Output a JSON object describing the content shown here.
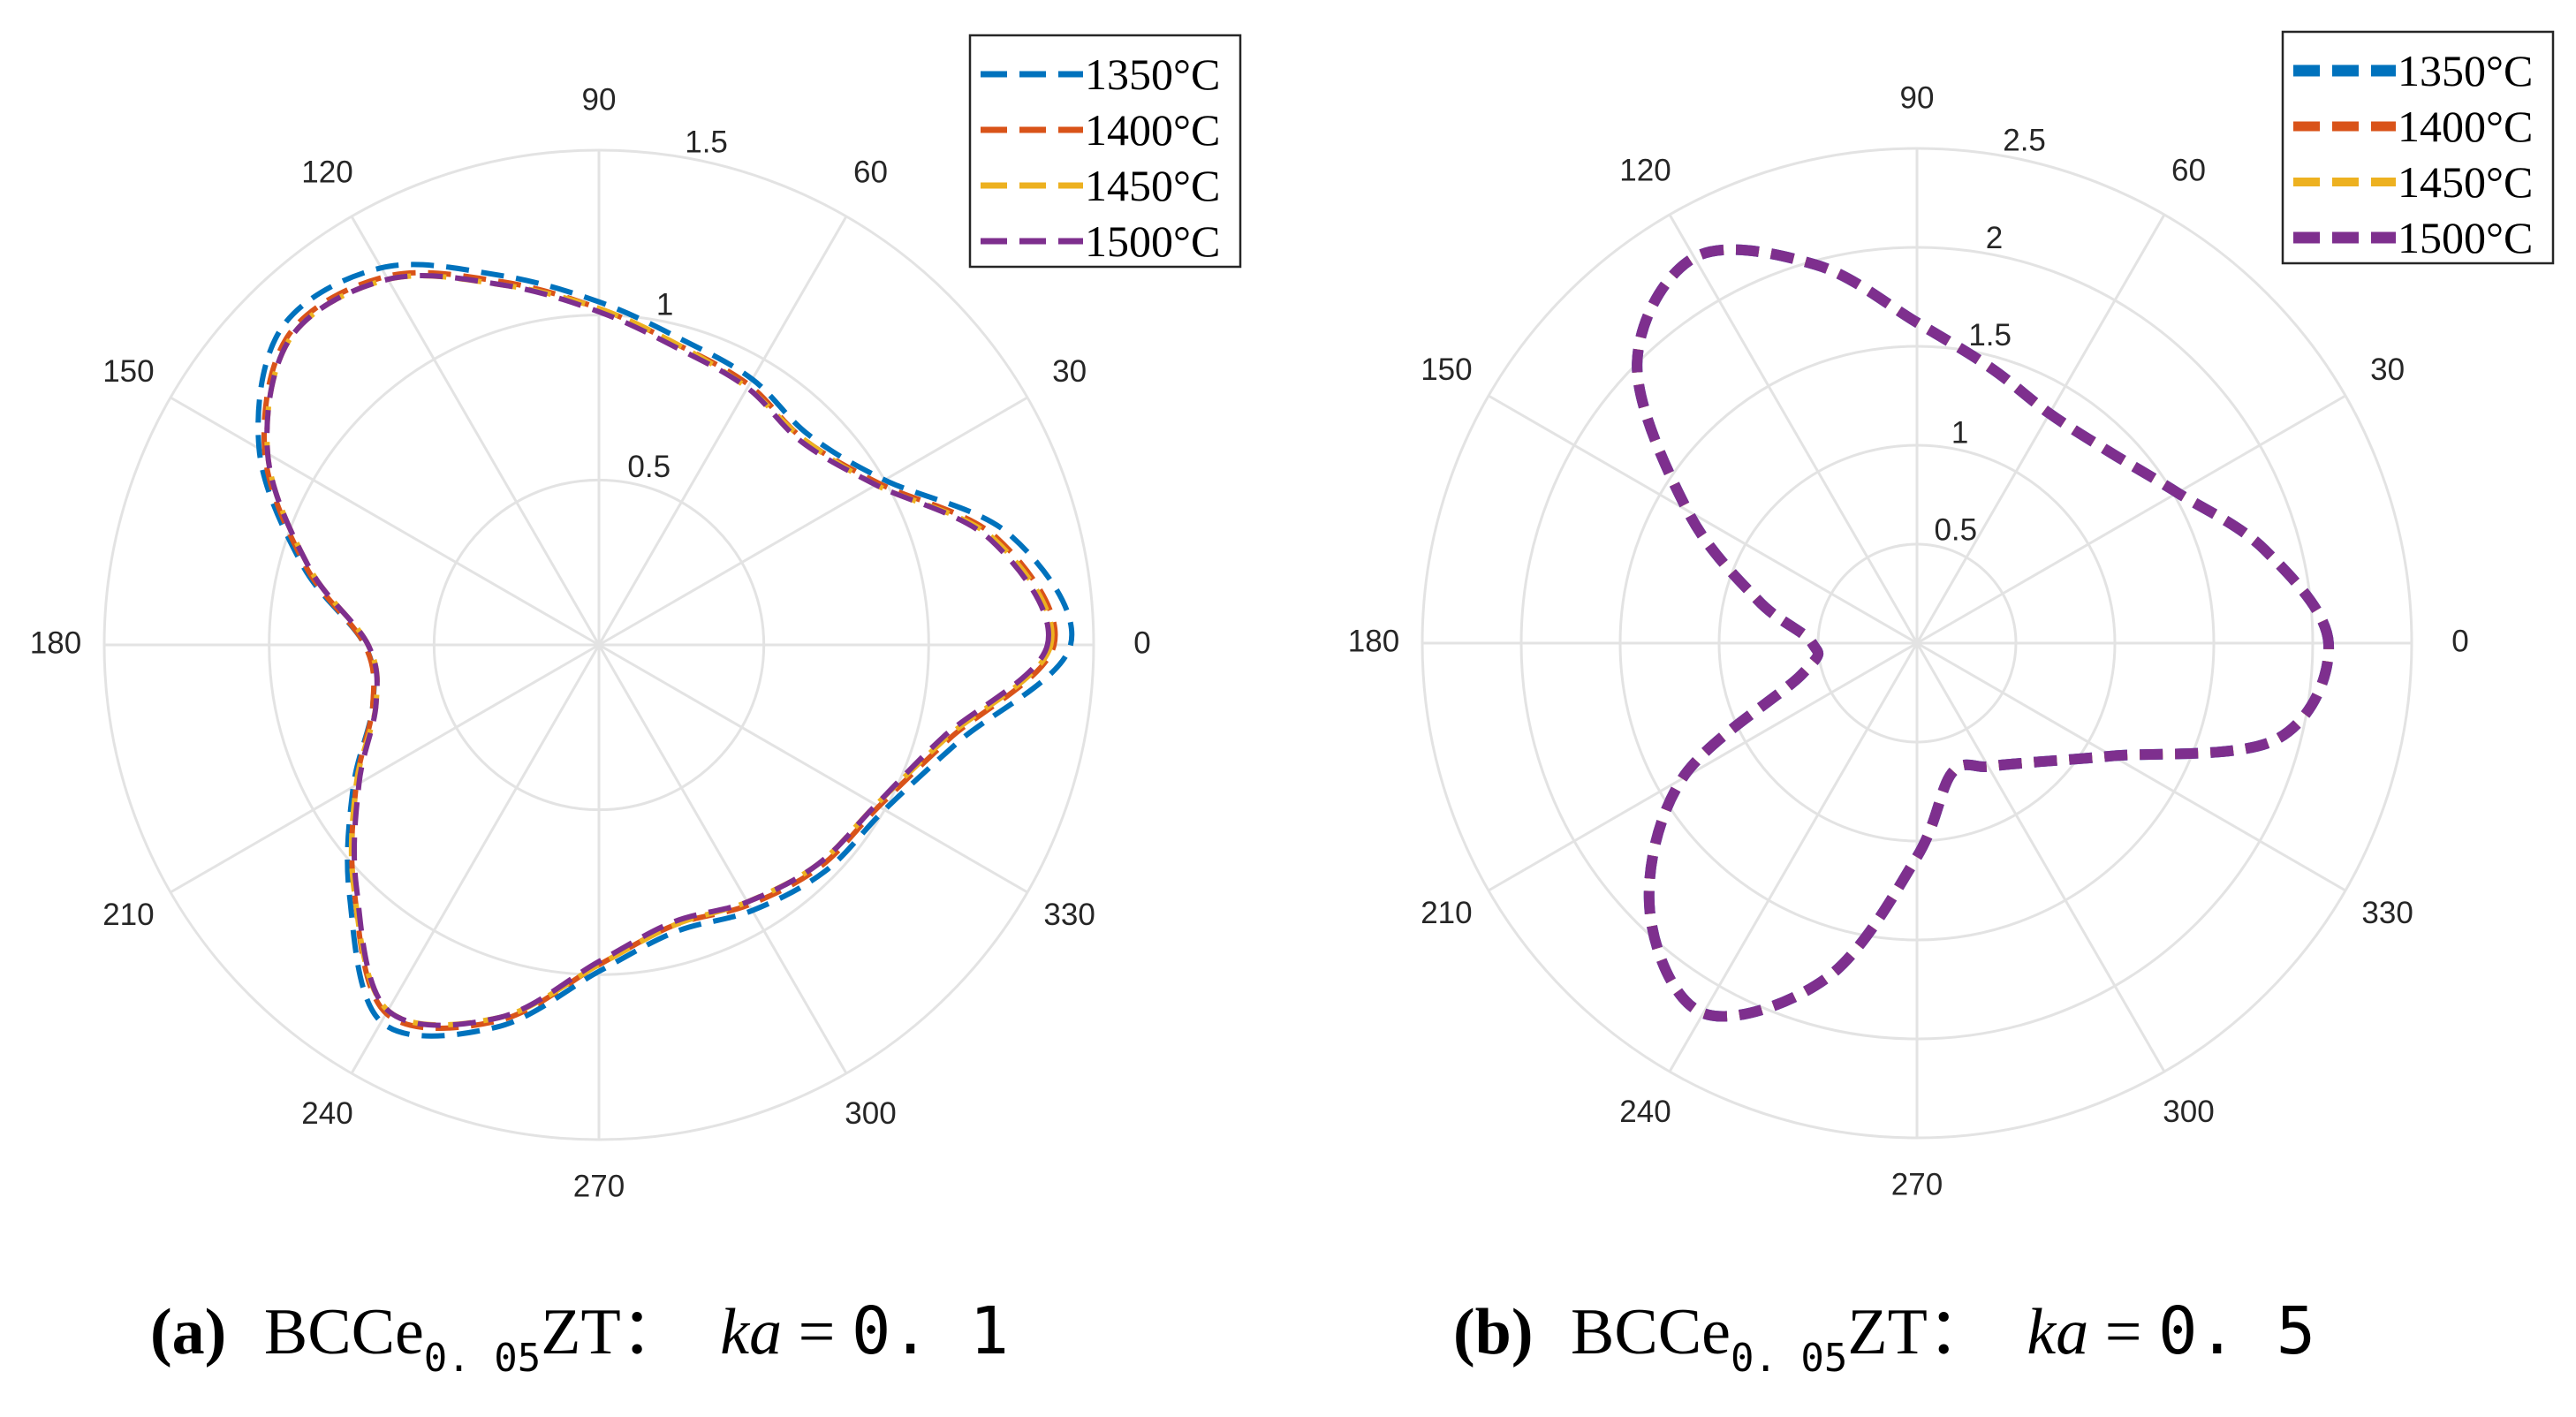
{
  "chart_data": [
    {
      "type": "polar-line",
      "caption": {
        "letter": "a",
        "compound": "BCCe",
        "subscript": "0. 05",
        "suffix": "ZT：",
        "param": "ka",
        "equals": " = ",
        "value": "0. 1"
      },
      "theta_ticks": [
        "0",
        "30",
        "60",
        "90",
        "120",
        "150",
        "180",
        "210",
        "240",
        "270",
        "300",
        "330"
      ],
      "rlim": [
        0,
        1.5
      ],
      "r_ticks": [
        0.5,
        1,
        1.5
      ],
      "r_tick_labels": [
        "0.5",
        "1",
        "1.5"
      ],
      "theta_deg": [
        0,
        15,
        30,
        45,
        60,
        75,
        90,
        105,
        120,
        135,
        150,
        165,
        180,
        195,
        210,
        225,
        240,
        255,
        270,
        285,
        300,
        315,
        330,
        345,
        360
      ],
      "series": [
        {
          "name": "1350°C",
          "color": "#0072BD",
          "r": [
            1.43,
            1.29,
            1.0,
            0.9,
            0.93,
            0.96,
            1.04,
            1.16,
            1.32,
            1.36,
            1.19,
            0.93,
            0.71,
            0.71,
            0.86,
            1.07,
            1.32,
            1.2,
            0.99,
            0.9,
            0.93,
            0.97,
            1.0,
            1.13,
            1.43
          ]
        },
        {
          "name": "1400°C",
          "color": "#D95319",
          "r": [
            1.38,
            1.25,
            0.98,
            0.88,
            0.91,
            0.94,
            1.02,
            1.14,
            1.29,
            1.33,
            1.17,
            0.92,
            0.71,
            0.71,
            0.85,
            1.05,
            1.29,
            1.18,
            0.97,
            0.88,
            0.91,
            0.95,
            0.98,
            1.1,
            1.38
          ]
        },
        {
          "name": "1450°C",
          "color": "#EDB120",
          "r": [
            1.37,
            1.24,
            0.97,
            0.88,
            0.9,
            0.94,
            1.02,
            1.13,
            1.28,
            1.32,
            1.16,
            0.91,
            0.7,
            0.7,
            0.85,
            1.05,
            1.28,
            1.17,
            0.97,
            0.88,
            0.9,
            0.94,
            0.97,
            1.09,
            1.37
          ]
        },
        {
          "name": "1500°C",
          "color": "#7E2F8E",
          "r": [
            1.36,
            1.23,
            0.97,
            0.87,
            0.9,
            0.93,
            1.01,
            1.13,
            1.28,
            1.32,
            1.16,
            0.91,
            0.7,
            0.7,
            0.84,
            1.04,
            1.28,
            1.17,
            0.96,
            0.87,
            0.9,
            0.94,
            0.97,
            1.08,
            1.36
          ]
        }
      ],
      "legend_location": "top-right"
    },
    {
      "type": "polar-line",
      "caption": {
        "letter": "b",
        "compound": "BCCe",
        "subscript": "0. 05",
        "suffix": "ZT：",
        "param": "ka",
        "equals": " = ",
        "value": "0. 5"
      },
      "theta_ticks": [
        "0",
        "30",
        "60",
        "90",
        "120",
        "150",
        "180",
        "210",
        "240",
        "270",
        "300",
        "330"
      ],
      "rlim": [
        0,
        2.5
      ],
      "r_ticks": [
        0.5,
        1,
        1.5,
        2,
        2.5
      ],
      "r_tick_labels": [
        "0.5",
        "1",
        "1.5",
        "2",
        "2.5"
      ],
      "theta_deg": [
        0,
        15,
        30,
        45,
        60,
        75,
        90,
        105,
        120,
        135,
        150,
        165,
        180,
        195,
        210,
        225,
        240,
        255,
        270,
        285,
        300,
        315,
        330,
        345,
        360
      ],
      "series": [
        {
          "name": "1350°C",
          "color": "#0072BD",
          "r": [
            2.08,
            1.82,
            1.52,
            1.37,
            1.34,
            1.44,
            1.62,
            1.98,
            2.25,
            2.0,
            1.34,
            0.83,
            0.53,
            0.6,
            1.37,
            1.91,
            2.16,
            1.75,
            1.08,
            0.68,
            0.72,
            0.85,
            1.14,
            1.88,
            2.08
          ]
        },
        {
          "name": "1400°C",
          "color": "#D95319",
          "r": [
            2.08,
            1.82,
            1.52,
            1.37,
            1.34,
            1.44,
            1.62,
            1.98,
            2.25,
            2.0,
            1.34,
            0.83,
            0.53,
            0.6,
            1.37,
            1.91,
            2.16,
            1.75,
            1.08,
            0.68,
            0.72,
            0.85,
            1.14,
            1.88,
            2.08
          ]
        },
        {
          "name": "1450°C",
          "color": "#EDB120",
          "r": [
            2.08,
            1.82,
            1.52,
            1.37,
            1.34,
            1.44,
            1.62,
            1.98,
            2.25,
            2.0,
            1.34,
            0.83,
            0.53,
            0.6,
            1.37,
            1.91,
            2.16,
            1.75,
            1.08,
            0.68,
            0.72,
            0.85,
            1.14,
            1.88,
            2.08
          ]
        },
        {
          "name": "1500°C",
          "color": "#7E2F8E",
          "r": [
            2.08,
            1.82,
            1.52,
            1.37,
            1.34,
            1.44,
            1.62,
            1.98,
            2.25,
            2.0,
            1.34,
            0.83,
            0.53,
            0.6,
            1.37,
            1.91,
            2.16,
            1.75,
            1.08,
            0.68,
            0.72,
            0.85,
            1.14,
            1.88,
            2.08
          ]
        }
      ],
      "legend_location": "top-right"
    }
  ]
}
